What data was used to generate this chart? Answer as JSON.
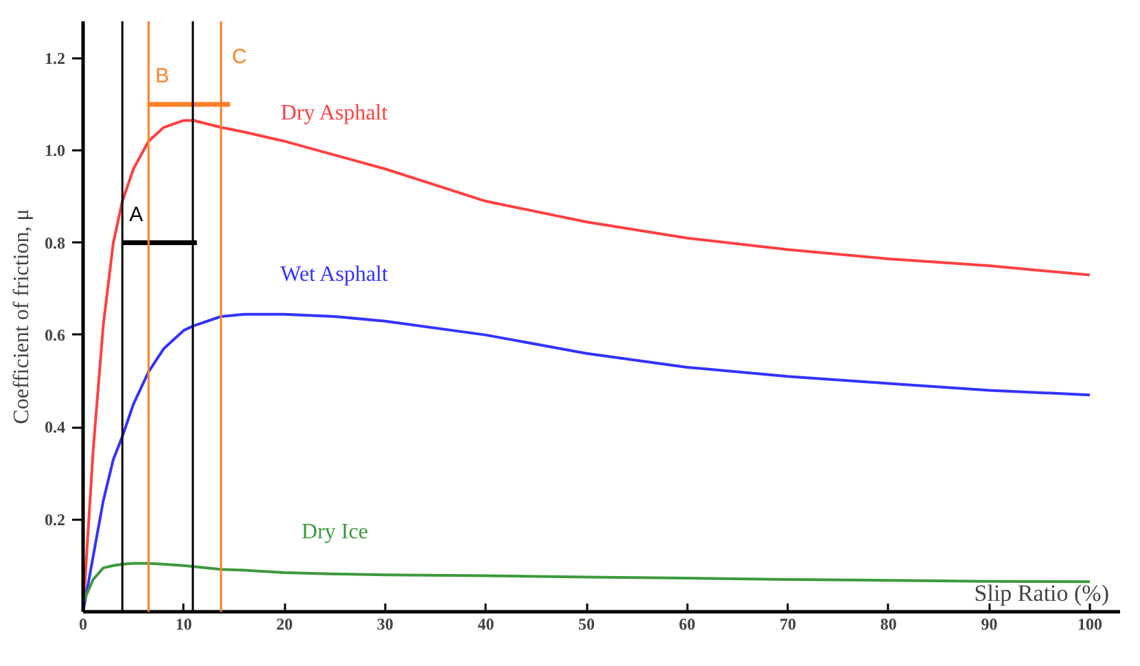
{
  "chart_data": {
    "type": "line",
    "xlabel": "Slip Ratio (%)",
    "ylabel": "Coefficient of friction, μ",
    "x": [
      0,
      1,
      2,
      3,
      3.9,
      5,
      6.5,
      8,
      10,
      11,
      13.7,
      16,
      20,
      25,
      30,
      40,
      50,
      60,
      70,
      80,
      90,
      100
    ],
    "series": [
      {
        "name": "Dry Asphalt",
        "color": "#ff4040",
        "values": [
          0.0,
          0.35,
          0.62,
          0.8,
          0.89,
          0.96,
          1.02,
          1.05,
          1.065,
          1.065,
          1.05,
          1.04,
          1.02,
          0.99,
          0.96,
          0.89,
          0.845,
          0.81,
          0.785,
          0.765,
          0.75,
          0.73
        ]
      },
      {
        "name": "Wet Asphalt",
        "color": "#3333ff",
        "values": [
          0.0,
          0.12,
          0.24,
          0.33,
          0.38,
          0.45,
          0.52,
          0.57,
          0.61,
          0.62,
          0.64,
          0.645,
          0.645,
          0.64,
          0.63,
          0.6,
          0.56,
          0.53,
          0.51,
          0.495,
          0.48,
          0.47
        ]
      },
      {
        "name": "Dry Ice",
        "color": "#3c9a3c",
        "values": [
          0.02,
          0.07,
          0.095,
          0.1,
          0.103,
          0.105,
          0.105,
          0.103,
          0.1,
          0.098,
          0.092,
          0.09,
          0.085,
          0.082,
          0.08,
          0.078,
          0.075,
          0.073,
          0.07,
          0.068,
          0.066,
          0.065
        ]
      },
      {
        "type": "line",
        "color": "#000000",
        "x": [
          3.9,
          11.3
        ],
        "values": [
          0.8,
          0.8
        ]
      },
      {
        "type": "line",
        "color": "#ff7f27",
        "x": [
          6.5,
          14.6
        ],
        "values": [
          1.1,
          1.1
        ]
      }
    ],
    "ref_lines": [
      {
        "axis": "x",
        "value": 3.9,
        "color": "#000000"
      },
      {
        "axis": "x",
        "value": 6.5,
        "color": "#ff7f27"
      },
      {
        "axis": "x",
        "value": 10.9,
        "color": "#000000"
      },
      {
        "axis": "x",
        "value": 13.7,
        "color": "#ff7f27"
      }
    ],
    "annotations": [
      "A",
      "B",
      "C"
    ],
    "xlim": [
      0,
      103
    ],
    "ylim": [
      0,
      1.28
    ],
    "xticks": [
      0,
      10,
      20,
      30,
      40,
      50,
      60,
      70,
      80,
      90,
      100
    ],
    "yticks": [
      0.2,
      0.4,
      0.6,
      0.8,
      {
        "value": 1.0,
        "label": "1.0"
      },
      1.2
    ],
    "grid": false,
    "legend": false,
    "marker": "none",
    "line_style": "solid"
  }
}
